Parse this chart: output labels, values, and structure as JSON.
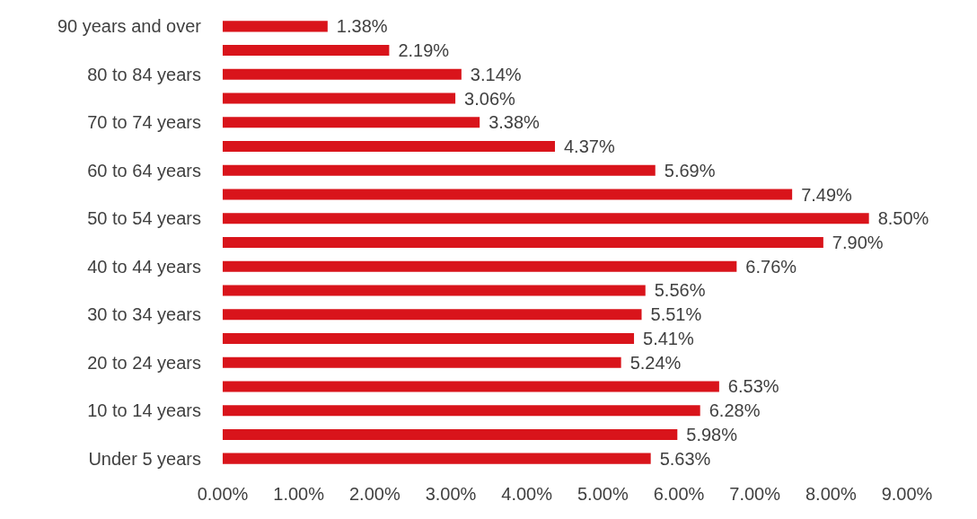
{
  "chart_data": {
    "type": "bar",
    "orientation": "horizontal",
    "categories": [
      "90 years and over",
      null,
      "80 to 84 years",
      null,
      "70 to 74 years",
      null,
      "60 to 64 years",
      null,
      "50 to 54 years",
      null,
      "40 to 44 years",
      null,
      "30 to 34 years",
      null,
      "20 to 24 years",
      null,
      "10 to 14 years",
      null,
      "Under 5 years"
    ],
    "values": [
      1.38,
      2.19,
      3.14,
      3.06,
      3.38,
      4.37,
      5.69,
      7.49,
      8.5,
      7.9,
      6.76,
      5.56,
      5.51,
      5.41,
      5.24,
      6.53,
      6.28,
      5.98,
      5.63
    ],
    "value_labels": [
      "1.38%",
      "2.19%",
      "3.14%",
      "3.06%",
      "3.38%",
      "4.37%",
      "5.69%",
      "7.49%",
      "8.50%",
      "7.90%",
      "6.76%",
      "5.56%",
      "5.51%",
      "5.41%",
      "5.24%",
      "6.53%",
      "6.28%",
      "5.98%",
      "5.63%"
    ],
    "color": "#d9141b",
    "xlim": [
      0,
      9
    ],
    "xticks": [
      {
        "value": 0,
        "label": "0.00%"
      },
      {
        "value": 1,
        "label": "1.00%"
      },
      {
        "value": 2,
        "label": "2.00%"
      },
      {
        "value": 3,
        "label": "3.00%"
      },
      {
        "value": 4,
        "label": "4.00%"
      },
      {
        "value": 5,
        "label": "5.00%"
      },
      {
        "value": 6,
        "label": "6.00%"
      },
      {
        "value": 7,
        "label": "7.00%"
      },
      {
        "value": 8,
        "label": "8.00%"
      },
      {
        "value": 9,
        "label": "9.00%"
      }
    ],
    "grid": false
  }
}
